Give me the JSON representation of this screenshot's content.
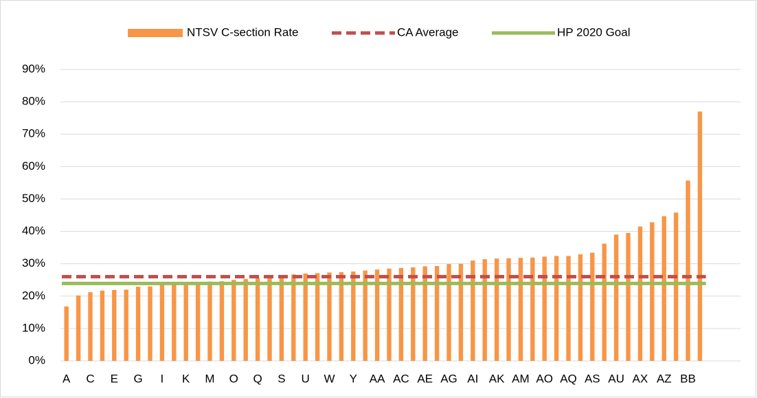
{
  "chart_data": {
    "type": "bar",
    "categories": [
      "A",
      null,
      "C",
      null,
      "E",
      null,
      "G",
      null,
      "I",
      null,
      "K",
      null,
      "M",
      null,
      "O",
      null,
      "Q",
      null,
      "S",
      null,
      "U",
      null,
      "W",
      null,
      "Y",
      null,
      "AA",
      null,
      "AC",
      null,
      "AE",
      null,
      "AG",
      null,
      "AI",
      null,
      "AK",
      null,
      "AM",
      null,
      "AO",
      null,
      "AQ",
      null,
      "AS",
      null,
      "AU",
      null,
      "AX",
      null,
      "AZ",
      null,
      "BB",
      null
    ],
    "series": [
      {
        "name": "NTSV C-section Rate",
        "color": "#f79646",
        "values": [
          16.8,
          20.2,
          21.2,
          21.7,
          21.9,
          22.0,
          22.9,
          23.0,
          23.5,
          23.6,
          23.7,
          23.8,
          24.5,
          24.6,
          25.0,
          25.3,
          25.6,
          26.0,
          26.3,
          26.7,
          27.0,
          27.1,
          27.3,
          27.4,
          27.6,
          27.9,
          28.2,
          28.5,
          28.7,
          28.9,
          29.2,
          29.3,
          29.9,
          30.0,
          31.0,
          31.4,
          31.6,
          31.7,
          31.8,
          31.9,
          32.2,
          32.4,
          32.4,
          32.9,
          33.4,
          36.2,
          39.0,
          39.5,
          41.5,
          42.8,
          44.7,
          45.8,
          55.7,
          77.0
        ]
      }
    ],
    "lines": [
      {
        "name": "CA Average",
        "color": "#c0504d",
        "value": 26.0,
        "dashed": true
      },
      {
        "name": "HP 2020 Goal",
        "color": "#9bbb59",
        "value": 23.9,
        "dashed": false
      }
    ],
    "ylim": [
      0,
      90
    ],
    "yticks": [
      {
        "value": 0,
        "label": "0%"
      },
      {
        "value": 10,
        "label": "10%"
      },
      {
        "value": 20,
        "label": "20%"
      },
      {
        "value": 30,
        "label": "30%"
      },
      {
        "value": 40,
        "label": "40%"
      },
      {
        "value": 50,
        "label": "50%"
      },
      {
        "value": 60,
        "label": "60%"
      },
      {
        "value": 70,
        "label": "70%"
      },
      {
        "value": 80,
        "label": "80%"
      },
      {
        "value": 90,
        "label": "90%"
      }
    ],
    "grid": true,
    "legend": "top"
  }
}
